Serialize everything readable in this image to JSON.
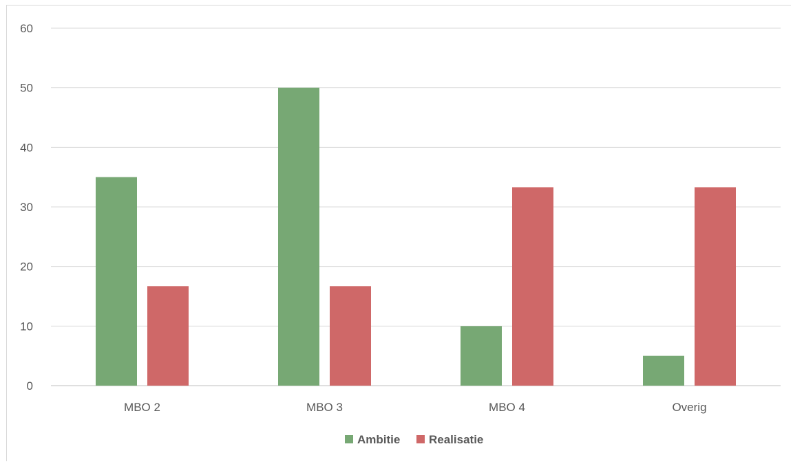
{
  "chart_data": {
    "type": "bar",
    "title": "",
    "xlabel": "",
    "ylabel": "",
    "categories": [
      "MBO 2",
      "MBO 3",
      "MBO 4",
      "Overig"
    ],
    "series": [
      {
        "name": "Ambitie",
        "color": "#77a874",
        "values": [
          35,
          50,
          10,
          5
        ]
      },
      {
        "name": "Realisatie",
        "color": "#cf6868",
        "values": [
          16.7,
          16.7,
          33.3,
          33.3
        ]
      }
    ],
    "ylim": [
      0,
      60
    ],
    "yticks": [
      "0",
      "10",
      "20",
      "30",
      "40",
      "50",
      "60"
    ],
    "grid": true,
    "legend_position": "bottom"
  }
}
